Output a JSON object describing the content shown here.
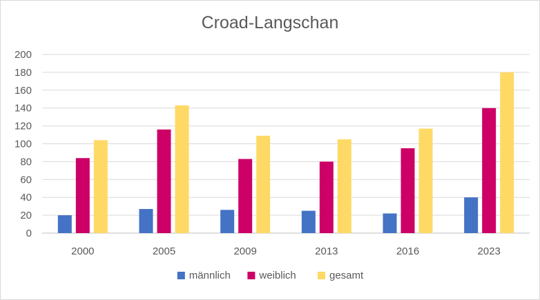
{
  "chart_data": {
    "type": "bar",
    "title": "Croad-Langschan",
    "xlabel": "",
    "ylabel": "",
    "categories": [
      "2000",
      "2005",
      "2009",
      "2013",
      "2016",
      "2023"
    ],
    "series": [
      {
        "name": "männlich",
        "color": "#4472c4",
        "values": [
          20,
          27,
          26,
          25,
          22,
          40
        ]
      },
      {
        "name": "weiblich",
        "color": "#cc0066",
        "values": [
          84,
          116,
          83,
          80,
          95,
          140
        ]
      },
      {
        "name": "gesamt",
        "color": "#ffd966",
        "values": [
          104,
          143,
          109,
          105,
          117,
          180
        ]
      }
    ],
    "ylim": [
      0,
      200
    ],
    "yticks": [
      0,
      20,
      40,
      60,
      80,
      100,
      120,
      140,
      160,
      180,
      200
    ],
    "grid": true,
    "legend_position": "bottom"
  }
}
